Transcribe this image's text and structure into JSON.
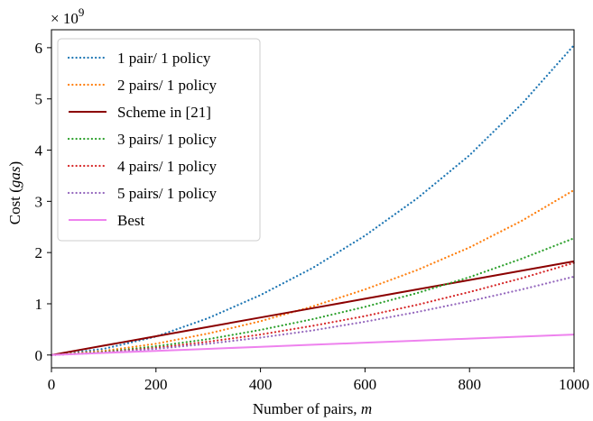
{
  "chart_data": {
    "type": "line",
    "xlabel_main": "Number of pairs, ",
    "xlabel_var": "m",
    "ylabel_main": "Cost (",
    "ylabel_var": "gas",
    "ylabel_end": ")",
    "multiplier_base": "× 10",
    "multiplier_exp": "9",
    "xlim": [
      0,
      1000
    ],
    "ylim": [
      -0.25,
      6.35
    ],
    "xticks": [
      0,
      200,
      400,
      600,
      800,
      1000
    ],
    "yticks": [
      0,
      1,
      2,
      3,
      4,
      5,
      6
    ],
    "grid": false,
    "legend_position": "upper-left",
    "x": [
      0,
      100,
      200,
      300,
      400,
      500,
      600,
      700,
      800,
      900,
      1000
    ],
    "series": [
      {
        "name": "1 pair/  1 policy",
        "color": "#1f77b4",
        "dash": "dotted",
        "values": [
          0,
          0.12,
          0.36,
          0.72,
          1.17,
          1.7,
          2.33,
          3.06,
          3.9,
          4.9,
          6.05
        ]
      },
      {
        "name": "2 pairs/  1 policy",
        "color": "#ff7f0e",
        "dash": "dotted",
        "values": [
          0,
          0.08,
          0.22,
          0.42,
          0.66,
          0.95,
          1.28,
          1.66,
          2.1,
          2.62,
          3.22
        ]
      },
      {
        "name": "Scheme in [21]",
        "color": "#8b0000",
        "dash": "solid",
        "values": [
          0,
          0.183,
          0.366,
          0.549,
          0.732,
          0.915,
          1.098,
          1.281,
          1.464,
          1.647,
          1.83
        ]
      },
      {
        "name": "3 pairs/  1 policy",
        "color": "#2ca02c",
        "dash": "dotted",
        "values": [
          0,
          0.06,
          0.17,
          0.31,
          0.49,
          0.7,
          0.94,
          1.21,
          1.52,
          1.88,
          2.28
        ]
      },
      {
        "name": "4 pairs/  1 policy",
        "color": "#d62728",
        "dash": "dotted",
        "values": [
          0,
          0.05,
          0.14,
          0.26,
          0.4,
          0.57,
          0.76,
          0.98,
          1.23,
          1.5,
          1.8
        ]
      },
      {
        "name": "5 pairs/  1 policy",
        "color": "#9467bd",
        "dash": "dotted",
        "values": [
          0,
          0.045,
          0.12,
          0.22,
          0.34,
          0.48,
          0.65,
          0.84,
          1.05,
          1.28,
          1.53
        ]
      },
      {
        "name": "Best",
        "color": "#ee82ee",
        "dash": "solid",
        "values": [
          0,
          0.04,
          0.08,
          0.12,
          0.16,
          0.2,
          0.24,
          0.28,
          0.32,
          0.36,
          0.4
        ]
      }
    ]
  }
}
